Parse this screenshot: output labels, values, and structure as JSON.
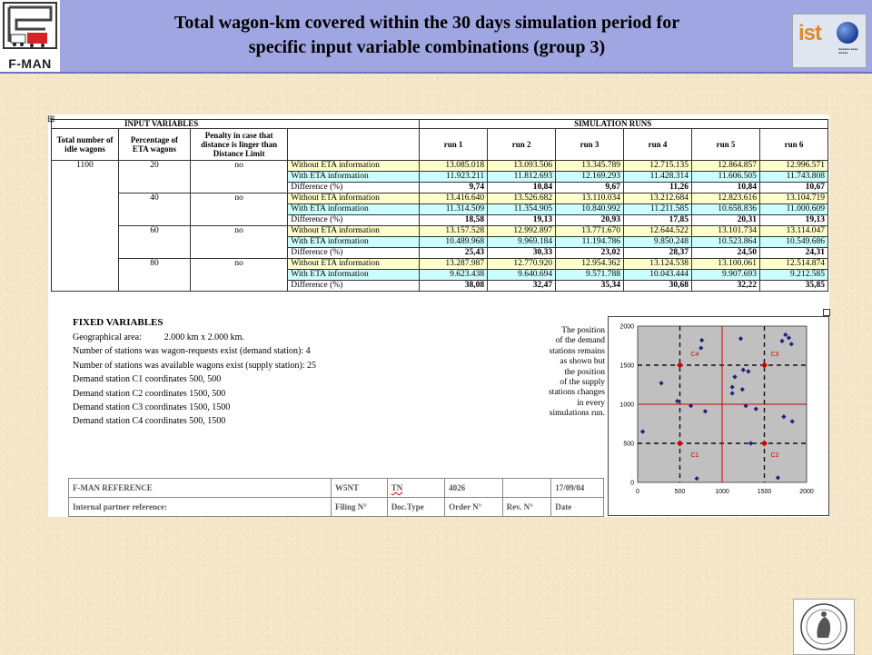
{
  "header": {
    "title_line1": "Total wagon-km covered within the 30 days simulation period for",
    "title_line2": "specific input variable combinations (group 3)",
    "left_logo_text": "F-MAN",
    "right_logo_text": "ist",
    "header_color": "#9fa6e2"
  },
  "table": {
    "input_variables_label": "INPUT VARIABLES",
    "simulation_runs_label": "SIMULATION RUNS",
    "col_idle": "Total number of idle wagons",
    "col_eta": "Percentage of ETA wagons",
    "col_penalty": "Penalty in case that distance is linger than Distance Limit",
    "runs": [
      "run 1",
      "run 2",
      "run 3",
      "run 4",
      "run 5",
      "run 6"
    ],
    "idle_wagons": "1100",
    "row_labels": [
      "Without ETA information",
      "With ETA information",
      "Difference (%)"
    ],
    "groups": [
      {
        "eta": "20",
        "penalty": "no",
        "without": [
          "13.085.018",
          "13.093.506",
          "13.345.789",
          "12.715.135",
          "12.864.857",
          "12.996.571"
        ],
        "with": [
          "11.923.211",
          "11.812.693",
          "12.169.293",
          "11.428.314",
          "11.606.505",
          "11.743.808"
        ],
        "diff": [
          "9,74",
          "10,84",
          "9,67",
          "11,26",
          "10,84",
          "10,67"
        ]
      },
      {
        "eta": "40",
        "penalty": "no",
        "without": [
          "13.416.640",
          "13.526.682",
          "13.110.034",
          "13.212.684",
          "12.823.616",
          "13.104.719"
        ],
        "with": [
          "11.314.509",
          "11.354.905",
          "10.840.992",
          "11.211.585",
          "10.658.836",
          "11.000.609"
        ],
        "diff": [
          "18,58",
          "19,13",
          "20,93",
          "17,85",
          "20,31",
          "19,13"
        ]
      },
      {
        "eta": "60",
        "penalty": "no",
        "without": [
          "13.157.528",
          "12.992.897",
          "13.771.670",
          "12.644.522",
          "13.101.734",
          "13.114.047"
        ],
        "with": [
          "10.489.968",
          "9.969.184",
          "11.194.786",
          "9.850.248",
          "10.523.864",
          "10.549.686"
        ],
        "diff": [
          "25,43",
          "30,33",
          "23,02",
          "28,37",
          "24,50",
          "24,31"
        ]
      },
      {
        "eta": "80",
        "penalty": "no",
        "without": [
          "13.287.987",
          "12.770.920",
          "12.954.362",
          "13.124.538",
          "13.100.061",
          "12.514.874"
        ],
        "with": [
          "9.623.438",
          "9.640.694",
          "9.571.788",
          "10.043.444",
          "9.907.693",
          "9.212.585"
        ],
        "diff": [
          "38,08",
          "32,47",
          "35,34",
          "30,68",
          "32,22",
          "35,85"
        ]
      }
    ],
    "colors": {
      "without": "#ffffcc",
      "with": "#ccffff"
    }
  },
  "fixed": {
    "heading": "FIXED VARIABLES",
    "lines": [
      "Geographical area:          2.000 km x 2.000 km.",
      "Number of stations was wagon-requests exist (demand station): 4",
      "Number of stations was available wagons exist (supply station): 25",
      "Demand station C1 coordinates 500, 500",
      "Demand station C2 coordinates 1500, 500",
      "Demand station C3 coordinates 1500, 1500",
      "Demand station C4 coordinates 500, 1500"
    ]
  },
  "note": {
    "lines": [
      "The position",
      "of the demand",
      "stations remains",
      "as shown but",
      "the position",
      "of the supply",
      "stations changes",
      "in every",
      "simulations run."
    ]
  },
  "chart_data": {
    "type": "scatter",
    "xlim": [
      0,
      2000
    ],
    "ylim": [
      0,
      2000
    ],
    "x_ticks": [
      "0",
      "500",
      "1000",
      "1500",
      "2000"
    ],
    "y_ticks": [
      "0",
      "500",
      "1000",
      "1500",
      "2000"
    ],
    "grid": true,
    "series": [
      {
        "name": "",
        "color": "#1a237e",
        "points": [
          [
            60,
            650
          ],
          [
            280,
            1270
          ],
          [
            470,
            1040
          ],
          [
            630,
            980
          ],
          [
            750,
            1720
          ],
          [
            760,
            1820
          ],
          [
            800,
            910
          ],
          [
            1220,
            1840
          ],
          [
            1250,
            1440
          ],
          [
            1310,
            1420
          ],
          [
            1150,
            1350
          ],
          [
            1120,
            1220
          ],
          [
            1120,
            1140
          ],
          [
            1240,
            1190
          ],
          [
            1280,
            980
          ],
          [
            1340,
            500
          ],
          [
            1400,
            940
          ],
          [
            1710,
            1810
          ],
          [
            1750,
            1890
          ],
          [
            1790,
            1850
          ],
          [
            1820,
            1770
          ],
          [
            1730,
            840
          ],
          [
            1830,
            780
          ],
          [
            700,
            50
          ],
          [
            1660,
            60
          ]
        ]
      },
      {
        "name": "Demand stations",
        "color": "#cc0000",
        "points": [
          [
            500,
            500
          ],
          [
            1500,
            500
          ],
          [
            1500,
            1500
          ],
          [
            500,
            1500
          ]
        ],
        "labels": [
          "C1",
          "C2",
          "C3",
          "C4"
        ]
      }
    ],
    "annotations": [
      "C1",
      "C2",
      "C3",
      "C4"
    ]
  },
  "reference": {
    "r1c1": "F-MAN REFERENCE",
    "r1c2": "W5NT",
    "r1c3": "TN",
    "r1c4": "4026",
    "r1c5": "",
    "r1c6": "17/09/04",
    "r2c1": "Internal partner reference:",
    "r2c2": "Filing N°",
    "r2c3": "Doc.Type",
    "r2c4": "Order N°",
    "r2c5": "Rev. N°",
    "r2c6": "Date"
  }
}
